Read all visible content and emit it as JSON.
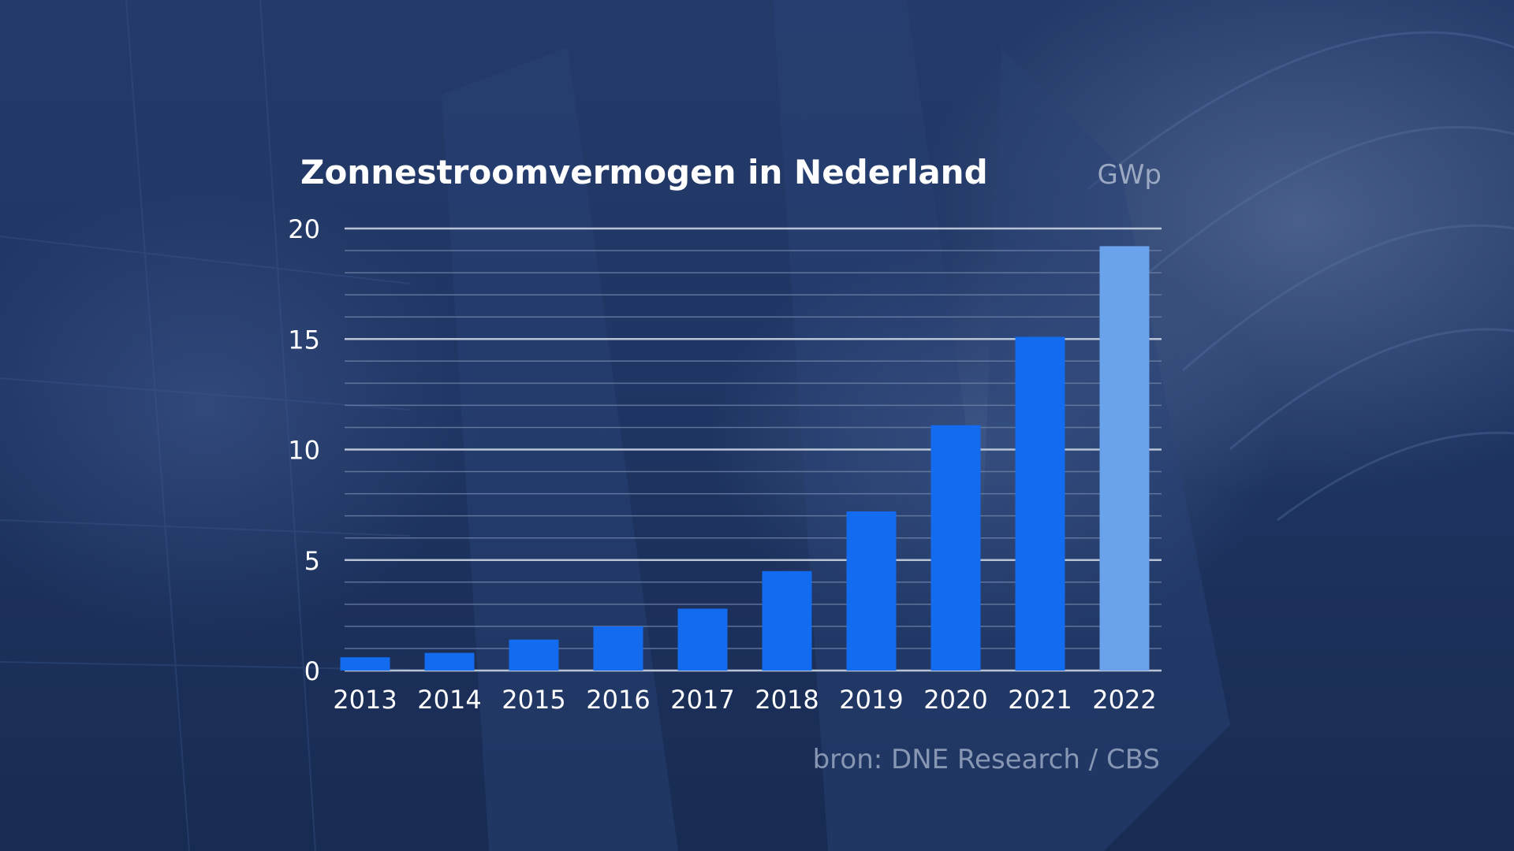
{
  "chart_data": {
    "type": "bar",
    "title": "Zonnestroomvermogen in Nederland",
    "unit": "GWp",
    "categories": [
      "2013",
      "2014",
      "2015",
      "2016",
      "2017",
      "2018",
      "2019",
      "2020",
      "2021",
      "2022"
    ],
    "values": [
      0.6,
      0.8,
      1.4,
      2.0,
      2.8,
      4.5,
      7.2,
      11.1,
      15.1,
      19.2
    ],
    "highlight_category": "2022",
    "ylim": [
      0,
      20
    ],
    "y_ticks": [
      "0",
      "5",
      "10",
      "15",
      "20"
    ],
    "y_tick_values": [
      0,
      5,
      10,
      15,
      20
    ],
    "minor_grid_step": 1,
    "grid": true,
    "source": "bron: DNE Research / CBS",
    "colors": {
      "bar": "#136cf0",
      "bar_highlight": "#6aa2ec",
      "major_grid": "#b9c3d6",
      "minor_grid": "#6f82a8"
    }
  }
}
